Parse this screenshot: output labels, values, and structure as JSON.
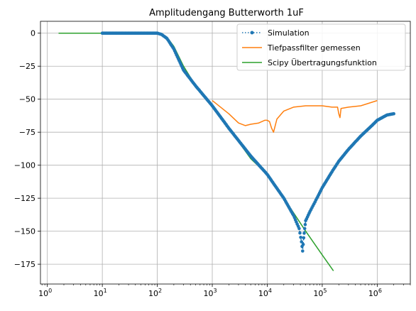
{
  "chart_data": {
    "type": "line",
    "title": "Amplitudengang Butterworth 1uF",
    "xlabel": "",
    "ylabel": "",
    "x_scale": "log",
    "xlim": [
      0.75,
      4000000
    ],
    "ylim": [
      -190,
      9
    ],
    "grid": true,
    "legend_position": "top-right",
    "x_ticks": [
      {
        "value": 1,
        "base": "10",
        "exp": "0"
      },
      {
        "value": 10,
        "base": "10",
        "exp": "1"
      },
      {
        "value": 100,
        "base": "10",
        "exp": "2"
      },
      {
        "value": 1000,
        "base": "10",
        "exp": "3"
      },
      {
        "value": 10000,
        "base": "10",
        "exp": "4"
      },
      {
        "value": 100000,
        "base": "10",
        "exp": "5"
      },
      {
        "value": 1000000,
        "base": "10",
        "exp": "6"
      }
    ],
    "y_ticks": [
      {
        "value": 0,
        "label": "0"
      },
      {
        "value": -25,
        "label": "−25"
      },
      {
        "value": -50,
        "label": "−50"
      },
      {
        "value": -75,
        "label": "−75"
      },
      {
        "value": -100,
        "label": "−100"
      },
      {
        "value": -125,
        "label": "−125"
      },
      {
        "value": -150,
        "label": "−150"
      },
      {
        "value": -175,
        "label": "−175"
      }
    ],
    "series": [
      {
        "name": "Simulation",
        "color": "#1f77b4",
        "style": "dotted-markers",
        "x": [
          10,
          20,
          50,
          80,
          100,
          120,
          150,
          200,
          300,
          500,
          1000,
          2000,
          5000,
          10000,
          20000,
          30000,
          38000,
          42000,
          44000,
          46000,
          48000,
          50000,
          60000,
          80000,
          100000,
          150000,
          200000,
          300000,
          500000,
          800000,
          1000000,
          1500000,
          2000000
        ],
        "y": [
          0,
          0,
          0,
          0,
          0,
          -1,
          -4,
          -12,
          -28,
          -40,
          -55,
          -72,
          -93,
          -107,
          -125,
          -138,
          -148,
          -158,
          -165,
          -155,
          -148,
          -142,
          -135,
          -125,
          -117,
          -105,
          -97,
          -88,
          -78,
          -70,
          -66,
          -62,
          -61
        ]
      },
      {
        "name": "Tiefpassfilter gemessen",
        "color": "#ff7f0e",
        "style": "solid",
        "x": [
          1000,
          2000,
          3000,
          4000,
          5000,
          7000,
          9000,
          10000,
          11000,
          12000,
          13000,
          15000,
          20000,
          30000,
          50000,
          100000,
          150000,
          190000,
          200000,
          210000,
          220000,
          300000,
          500000,
          1000000
        ],
        "y": [
          -51,
          -61,
          -68,
          -70,
          -69,
          -68,
          -66,
          -66,
          -67,
          -72,
          -75,
          -65,
          -59,
          -56,
          -55,
          -55,
          -56,
          -56,
          -61,
          -64,
          -57,
          -56,
          -55,
          -51
        ]
      },
      {
        "name": "Scipy Übertragungsfunktion",
        "color": "#2ca02c",
        "style": "solid",
        "x": [
          1.6,
          10,
          50,
          100,
          120,
          150,
          200,
          300,
          500,
          1000,
          2000,
          5000,
          10000,
          20000,
          30000,
          50000,
          100000,
          160000
        ],
        "y": [
          0,
          0,
          0,
          0,
          -1,
          -3,
          -10,
          -25,
          -40,
          -55,
          -72,
          -95,
          -107,
          -125,
          -136,
          -150,
          -168,
          -180
        ]
      }
    ]
  }
}
